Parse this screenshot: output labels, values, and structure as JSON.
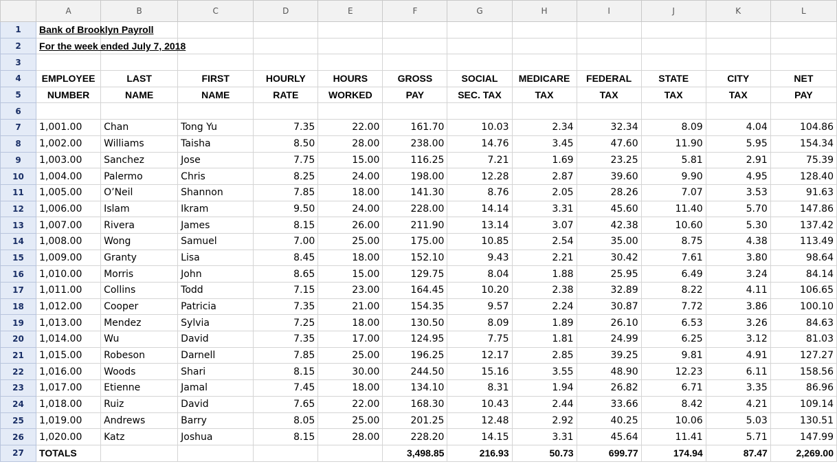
{
  "columns": [
    "A",
    "B",
    "C",
    "D",
    "E",
    "F",
    "G",
    "H",
    "I",
    "J",
    "K",
    "L"
  ],
  "title": "Bank of Brooklyn Payroll",
  "subtitle": "For the week  ended July 7, 2018",
  "headers_row4": [
    "EMPLOYEE",
    "LAST",
    "FIRST",
    "HOURLY",
    "HOURS",
    "GROSS",
    "SOCIAL",
    "MEDICARE",
    "FEDERAL",
    "STATE",
    "CITY",
    "NET"
  ],
  "headers_row5": [
    "NUMBER",
    "NAME",
    "NAME",
    "RATE",
    "WORKED",
    "PAY",
    "SEC. TAX",
    "TAX",
    "TAX",
    "TAX",
    "TAX",
    "PAY"
  ],
  "employees": [
    [
      "1,001.00",
      "Chan",
      "Tong Yu",
      "7.35",
      "22.00",
      "161.70",
      "10.03",
      "2.34",
      "32.34",
      "8.09",
      "4.04",
      "104.86"
    ],
    [
      "1,002.00",
      "Williams",
      "Taisha",
      "8.50",
      "28.00",
      "238.00",
      "14.76",
      "3.45",
      "47.60",
      "11.90",
      "5.95",
      "154.34"
    ],
    [
      "1,003.00",
      "Sanchez",
      "Jose",
      "7.75",
      "15.00",
      "116.25",
      "7.21",
      "1.69",
      "23.25",
      "5.81",
      "2.91",
      "75.39"
    ],
    [
      "1,004.00",
      "Palermo",
      "Chris",
      "8.25",
      "24.00",
      "198.00",
      "12.28",
      "2.87",
      "39.60",
      "9.90",
      "4.95",
      "128.40"
    ],
    [
      "1,005.00",
      "O’Neil",
      "Shannon",
      "7.85",
      "18.00",
      "141.30",
      "8.76",
      "2.05",
      "28.26",
      "7.07",
      "3.53",
      "91.63"
    ],
    [
      "1,006.00",
      "Islam",
      "Ikram",
      "9.50",
      "24.00",
      "228.00",
      "14.14",
      "3.31",
      "45.60",
      "11.40",
      "5.70",
      "147.86"
    ],
    [
      "1,007.00",
      "Rivera",
      "James",
      "8.15",
      "26.00",
      "211.90",
      "13.14",
      "3.07",
      "42.38",
      "10.60",
      "5.30",
      "137.42"
    ],
    [
      "1,008.00",
      "Wong",
      "Samuel",
      "7.00",
      "25.00",
      "175.00",
      "10.85",
      "2.54",
      "35.00",
      "8.75",
      "4.38",
      "113.49"
    ],
    [
      "1,009.00",
      "Granty",
      "Lisa",
      "8.45",
      "18.00",
      "152.10",
      "9.43",
      "2.21",
      "30.42",
      "7.61",
      "3.80",
      "98.64"
    ],
    [
      "1,010.00",
      "Morris",
      "John",
      "8.65",
      "15.00",
      "129.75",
      "8.04",
      "1.88",
      "25.95",
      "6.49",
      "3.24",
      "84.14"
    ],
    [
      "1,011.00",
      "Collins",
      "Todd",
      "7.15",
      "23.00",
      "164.45",
      "10.20",
      "2.38",
      "32.89",
      "8.22",
      "4.11",
      "106.65"
    ],
    [
      "1,012.00",
      "Cooper",
      "Patricia",
      "7.35",
      "21.00",
      "154.35",
      "9.57",
      "2.24",
      "30.87",
      "7.72",
      "3.86",
      "100.10"
    ],
    [
      "1,013.00",
      "Mendez",
      "Sylvia",
      "7.25",
      "18.00",
      "130.50",
      "8.09",
      "1.89",
      "26.10",
      "6.53",
      "3.26",
      "84.63"
    ],
    [
      "1,014.00",
      "Wu",
      "David",
      "7.35",
      "17.00",
      "124.95",
      "7.75",
      "1.81",
      "24.99",
      "6.25",
      "3.12",
      "81.03"
    ],
    [
      "1,015.00",
      "Robeson",
      "Darnell",
      "7.85",
      "25.00",
      "196.25",
      "12.17",
      "2.85",
      "39.25",
      "9.81",
      "4.91",
      "127.27"
    ],
    [
      "1,016.00",
      "Woods",
      "Shari",
      "8.15",
      "30.00",
      "244.50",
      "15.16",
      "3.55",
      "48.90",
      "12.23",
      "6.11",
      "158.56"
    ],
    [
      "1,017.00",
      "Etienne",
      "Jamal",
      "7.45",
      "18.00",
      "134.10",
      "8.31",
      "1.94",
      "26.82",
      "6.71",
      "3.35",
      "86.96"
    ],
    [
      "1,018.00",
      "Ruiz",
      "David",
      "7.65",
      "22.00",
      "168.30",
      "10.43",
      "2.44",
      "33.66",
      "8.42",
      "4.21",
      "109.14"
    ],
    [
      "1,019.00",
      "Andrews",
      "Barry",
      "8.05",
      "25.00",
      "201.25",
      "12.48",
      "2.92",
      "40.25",
      "10.06",
      "5.03",
      "130.51"
    ],
    [
      "1,020.00",
      "Katz",
      "Joshua",
      "8.15",
      "28.00",
      "228.20",
      "14.15",
      "3.31",
      "45.64",
      "11.41",
      "5.71",
      "147.99"
    ]
  ],
  "totals": [
    "TOTALS",
    "",
    "",
    "",
    "",
    "3,498.85",
    "216.93",
    "50.73",
    "699.77",
    "174.94",
    "87.47",
    "2,269.00"
  ]
}
